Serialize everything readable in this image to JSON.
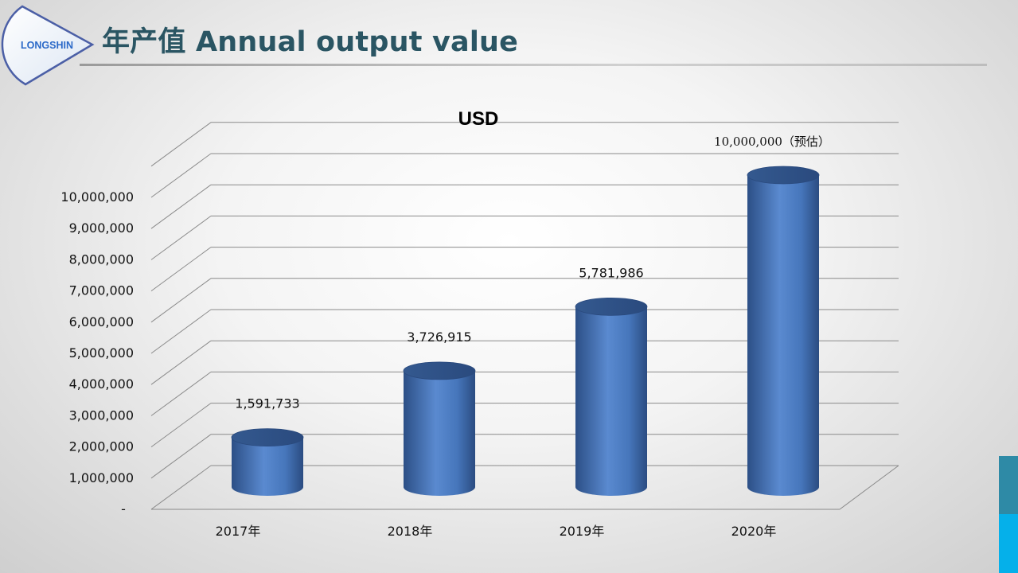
{
  "header": {
    "logo_text": "LONGSHIN",
    "title": "年产值 Annual output value"
  },
  "colors": {
    "title": "#2a5563",
    "bar": "#4a7bc0",
    "bar_dark": "#2c4f86",
    "accent_teal": "#2e8aa6",
    "accent_cyan": "#05b0ea"
  },
  "chart_data": {
    "type": "bar",
    "style": "3d-cylinder",
    "title": "USD",
    "categories": [
      "2017年",
      "2018年",
      "2019年",
      "2020年"
    ],
    "values": [
      1591733,
      3726915,
      5781986,
      10000000
    ],
    "data_labels": [
      "1,591,733",
      "3,726,915",
      "5,781,986",
      "10,000,000（预估）"
    ],
    "y_ticks": [
      {
        "value": 0,
        "label": "-"
      },
      {
        "value": 1000000,
        "label": "1,000,000"
      },
      {
        "value": 2000000,
        "label": "2,000,000"
      },
      {
        "value": 3000000,
        "label": "3,000,000"
      },
      {
        "value": 4000000,
        "label": "4,000,000"
      },
      {
        "value": 5000000,
        "label": "5,000,000"
      },
      {
        "value": 6000000,
        "label": "6,000,000"
      },
      {
        "value": 7000000,
        "label": "7,000,000"
      },
      {
        "value": 8000000,
        "label": "8,000,000"
      },
      {
        "value": 9000000,
        "label": "9,000,000"
      },
      {
        "value": 10000000,
        "label": "10,000,000"
      }
    ],
    "ylim": [
      0,
      11000000
    ],
    "grid": true,
    "legend": "none"
  }
}
